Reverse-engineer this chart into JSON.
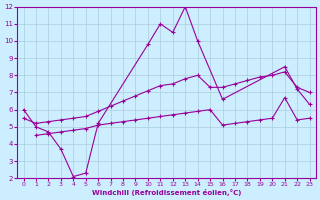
{
  "xlabel": "Windchill (Refroidissement éolien,°C)",
  "bg_color": "#cceeff",
  "grid_color": "#aaccdd",
  "line_color": "#990099",
  "xlim": [
    -0.5,
    23.5
  ],
  "ylim": [
    2,
    12
  ],
  "xticks": [
    0,
    1,
    2,
    3,
    4,
    5,
    6,
    7,
    8,
    9,
    10,
    11,
    12,
    13,
    14,
    15,
    16,
    17,
    18,
    19,
    20,
    21,
    22,
    23
  ],
  "yticks": [
    2,
    3,
    4,
    5,
    6,
    7,
    8,
    9,
    10,
    11,
    12
  ],
  "line1_x": [
    0,
    1,
    2,
    3,
    4,
    5,
    6,
    10,
    11,
    12,
    13,
    14,
    16,
    21,
    22,
    23
  ],
  "line1_y": [
    6.0,
    5.0,
    4.7,
    3.7,
    2.1,
    2.3,
    5.2,
    9.8,
    11.0,
    10.5,
    12.0,
    10.0,
    6.6,
    8.5,
    7.2,
    6.3
  ],
  "line2_x": [
    0,
    1,
    2,
    3,
    4,
    5,
    6,
    7,
    8,
    9,
    10,
    11,
    12,
    13,
    14,
    15,
    16,
    17,
    18,
    19,
    20,
    21,
    22,
    23
  ],
  "line2_y": [
    5.5,
    5.2,
    5.3,
    5.4,
    5.5,
    5.6,
    5.9,
    6.2,
    6.5,
    6.8,
    7.1,
    7.4,
    7.5,
    7.8,
    8.0,
    7.3,
    7.3,
    7.5,
    7.7,
    7.9,
    8.0,
    8.2,
    7.3,
    7.0
  ],
  "line3_x": [
    1,
    2,
    3,
    4,
    5,
    6,
    7,
    8,
    9,
    10,
    11,
    12,
    13,
    14,
    15,
    16,
    17,
    18,
    19,
    20,
    21,
    22,
    23
  ],
  "line3_y": [
    4.5,
    4.6,
    4.7,
    4.8,
    4.9,
    5.1,
    5.2,
    5.3,
    5.4,
    5.5,
    5.6,
    5.7,
    5.8,
    5.9,
    6.0,
    5.1,
    5.2,
    5.3,
    5.4,
    5.5,
    6.7,
    5.4,
    5.5
  ],
  "marker": "+"
}
